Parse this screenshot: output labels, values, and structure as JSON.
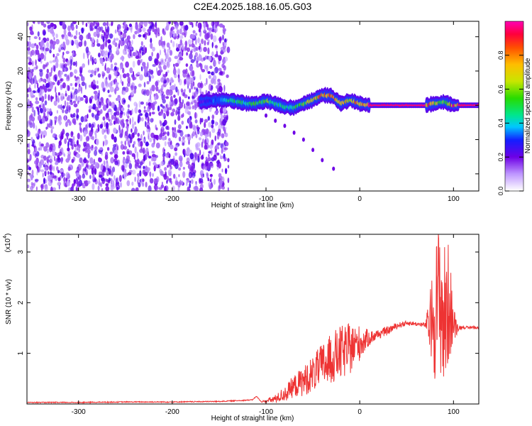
{
  "title": "C2E4.2025.188.16.05.G03",
  "chart_data": [
    {
      "type": "heatmap",
      "xlabel": "Height of straight line (km)",
      "ylabel": "Frequency (Hz)",
      "xlim": [
        -355,
        127
      ],
      "ylim": [
        -50,
        49
      ],
      "xticks": [
        -300,
        -200,
        -100,
        0,
        100
      ],
      "yticks": [
        -40,
        -20,
        0,
        20,
        40
      ],
      "xtick_labels": [
        "-300",
        "-200",
        "-100",
        "0",
        "100"
      ],
      "ytick_labels": [
        "-40",
        "-20",
        "0",
        "20",
        "40"
      ],
      "noise_region_x": [
        -355,
        -140
      ],
      "ridge": [
        {
          "x": -170,
          "f": 2.0,
          "a": 0.2
        },
        {
          "x": -160,
          "f": 2.5,
          "a": 0.3
        },
        {
          "x": -150,
          "f": 3.0,
          "a": 0.4
        },
        {
          "x": -140,
          "f": 3.0,
          "a": 0.45
        },
        {
          "x": -130,
          "f": 2.0,
          "a": 0.5
        },
        {
          "x": -120,
          "f": 1.0,
          "a": 0.5
        },
        {
          "x": -110,
          "f": 1.0,
          "a": 0.55
        },
        {
          "x": -100,
          "f": 2.5,
          "a": 0.6
        },
        {
          "x": -90,
          "f": 1.0,
          "a": 0.5
        },
        {
          "x": -80,
          "f": -1.0,
          "a": 0.45
        },
        {
          "x": -70,
          "f": -1.5,
          "a": 0.5
        },
        {
          "x": -60,
          "f": 1.0,
          "a": 0.6
        },
        {
          "x": -50,
          "f": 3.0,
          "a": 0.7
        },
        {
          "x": -40,
          "f": 6.0,
          "a": 0.85
        },
        {
          "x": -30,
          "f": 5.5,
          "a": 0.8
        },
        {
          "x": -20,
          "f": 1.0,
          "a": 0.75
        },
        {
          "x": -10,
          "f": 3.0,
          "a": 0.75
        },
        {
          "x": 0,
          "f": 1.0,
          "a": 0.85
        },
        {
          "x": 10,
          "f": 0.0,
          "a": 0.95
        },
        {
          "x": 70,
          "f": 0.0,
          "a": 0.95
        },
        {
          "x": 80,
          "f": 1.0,
          "a": 0.7
        },
        {
          "x": 90,
          "f": 2.0,
          "a": 0.6
        },
        {
          "x": 100,
          "f": 0.0,
          "a": 0.9
        },
        {
          "x": 127,
          "f": 0.0,
          "a": 0.95
        }
      ],
      "branch": [
        {
          "x": -100,
          "f": -6
        },
        {
          "x": -90,
          "f": -9
        },
        {
          "x": -80,
          "f": -12
        },
        {
          "x": -70,
          "f": -16
        },
        {
          "x": -60,
          "f": -20
        },
        {
          "x": -50,
          "f": -26
        },
        {
          "x": -40,
          "f": -32
        },
        {
          "x": -28,
          "f": -37
        }
      ]
    },
    {
      "type": "line",
      "xlabel": "Height of straight line (km)",
      "ylabel": "SNR (10 * v/v)",
      "y_multiplier": "(x10",
      "y_multiplier_exp": "4",
      "y_multiplier_close": ")",
      "xlim": [
        -355,
        127
      ],
      "ylim": [
        0,
        3.35
      ],
      "xticks": [
        -300,
        -200,
        -100,
        0,
        100
      ],
      "yticks": [
        1,
        2,
        3
      ],
      "xtick_labels": [
        "-300",
        "-200",
        "-100",
        "0",
        "100"
      ],
      "ytick_labels": [
        "1",
        "2",
        "3"
      ],
      "color": "#ee3333",
      "series": [
        {
          "x": [
            -355,
            -300,
            -250,
            -200,
            -150,
            -115,
            -110,
            -105,
            -100,
            -90,
            -80,
            -70,
            -60,
            -50,
            -40,
            -30,
            -20,
            -10,
            0,
            10,
            20,
            30,
            40,
            50,
            60,
            70,
            75,
            80,
            85,
            90,
            95,
            100,
            105,
            110,
            115,
            120,
            127
          ],
          "y": [
            0.03,
            0.03,
            0.04,
            0.04,
            0.05,
            0.08,
            0.15,
            0.04,
            0.06,
            0.1,
            0.2,
            0.35,
            0.45,
            0.6,
            0.75,
            0.9,
            1.0,
            1.1,
            1.2,
            1.3,
            1.38,
            1.45,
            1.55,
            1.6,
            1.58,
            1.56,
            1.6,
            1.8,
            2.2,
            1.6,
            2.0,
            1.55,
            1.5,
            1.52,
            1.5,
            1.52,
            1.5
          ],
          "noise": [
            0,
            0,
            0,
            0,
            0,
            0,
            0,
            0,
            0.03,
            0.08,
            0.15,
            0.22,
            0.3,
            0.35,
            0.45,
            0.5,
            0.55,
            0.5,
            0.35,
            0.15,
            0.1,
            0.08,
            0.06,
            0.05,
            0.04,
            0.05,
            0.6,
            1.3,
            1.5,
            1.6,
            1.2,
            0.4,
            0.05,
            0.03,
            0.03,
            0.03,
            0.03
          ]
        }
      ]
    }
  ],
  "colorbar": {
    "label": "Normalized spectral amplitude",
    "range": [
      0,
      1
    ],
    "ticks": [
      0.0,
      0.2,
      0.4,
      0.6,
      0.8
    ],
    "tick_labels": [
      "0.0",
      "0.2",
      "0.4",
      "0.6",
      "0.8"
    ]
  }
}
